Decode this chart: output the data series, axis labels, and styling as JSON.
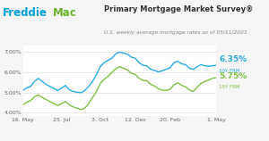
{
  "title": "Primary Mortgage Market Survey®",
  "subtitle": "U.S. weekly average mortgage rates as of 05/11/2023",
  "ylabel_30": "6.35%",
  "ylabel_15": "5.75%",
  "label_30": "30Y FRM",
  "label_15": "15Y FRM",
  "color_30": "#29ABE2",
  "color_15": "#7DC242",
  "bg_color": "#F5F5F5",
  "chart_bg": "#FFFFFF",
  "ylim": [
    3.85,
    7.35
  ],
  "yticks": [
    4.0,
    5.0,
    6.0,
    7.0
  ],
  "ytick_labels": [
    "4.00%",
    "5.00%",
    "6.00%",
    "7.00%"
  ],
  "xtick_labels": [
    "16. May",
    "25. Jul",
    "3. Oct",
    "12. Dec",
    "20. Feb",
    "1. May"
  ],
  "xtick_pos": [
    0,
    10,
    20,
    29,
    38,
    50
  ],
  "title_color": "#333333",
  "subtitle_color": "#888888",
  "freddie_blue": "#009FDB",
  "freddie_green": "#6AB42D",
  "x_30y": [
    0,
    1,
    2,
    3,
    4,
    5,
    6,
    7,
    8,
    9,
    10,
    11,
    12,
    13,
    14,
    15,
    16,
    17,
    18,
    19,
    20,
    21,
    22,
    23,
    24,
    25,
    26,
    27,
    28,
    29,
    30,
    31,
    32,
    33,
    34,
    35,
    36,
    37,
    38,
    39,
    40,
    41,
    42,
    43,
    44,
    45,
    46,
    47,
    48,
    49,
    50
  ],
  "y_30y": [
    5.1,
    5.23,
    5.3,
    5.55,
    5.7,
    5.55,
    5.4,
    5.3,
    5.2,
    5.1,
    5.22,
    5.35,
    5.13,
    5.05,
    5.01,
    4.99,
    5.1,
    5.3,
    5.55,
    5.89,
    6.29,
    6.48,
    6.6,
    6.7,
    6.92,
    7.0,
    6.95,
    6.9,
    6.75,
    6.7,
    6.48,
    6.35,
    6.32,
    6.15,
    6.09,
    6.02,
    6.08,
    6.15,
    6.22,
    6.48,
    6.55,
    6.42,
    6.38,
    6.2,
    6.15,
    6.28,
    6.38,
    6.32,
    6.3,
    6.33,
    6.35
  ],
  "y_15y": [
    4.38,
    4.52,
    4.6,
    4.78,
    4.88,
    4.75,
    4.65,
    4.55,
    4.45,
    4.35,
    4.45,
    4.55,
    4.38,
    4.28,
    4.22,
    4.15,
    4.22,
    4.45,
    4.75,
    5.05,
    5.45,
    5.65,
    5.8,
    6.0,
    6.18,
    6.28,
    6.2,
    6.12,
    5.95,
    5.9,
    5.7,
    5.6,
    5.58,
    5.4,
    5.32,
    5.18,
    5.12,
    5.1,
    5.15,
    5.38,
    5.48,
    5.35,
    5.28,
    5.12,
    5.05,
    5.25,
    5.45,
    5.55,
    5.62,
    5.7,
    5.75
  ]
}
